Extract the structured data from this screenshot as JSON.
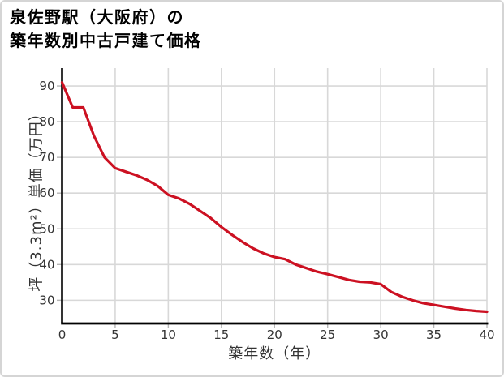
{
  "chart": {
    "title_line1": "泉佐野駅（大阪府）の",
    "title_line2": "築年数別中古戸建て価格"
  },
  "chart_data": {
    "type": "line",
    "title": "泉佐野駅（大阪府）の築年数別中古戸建て価格",
    "xlabel": "築年数（年）",
    "ylabel": "坪（3.3m²）単価（万円）",
    "x": [
      0,
      1,
      2,
      3,
      4,
      5,
      6,
      7,
      8,
      9,
      10,
      11,
      12,
      13,
      14,
      15,
      16,
      17,
      18,
      19,
      20,
      21,
      22,
      23,
      24,
      25,
      26,
      27,
      28,
      29,
      30,
      31,
      32,
      33,
      34,
      35,
      36,
      37,
      38,
      39,
      40
    ],
    "values": [
      91,
      84,
      84,
      76,
      70,
      67,
      66,
      65,
      63.7,
      62,
      59.5,
      58.5,
      57,
      55,
      53,
      50.5,
      48.3,
      46.3,
      44.5,
      43.1,
      42.1,
      41.5,
      40,
      39,
      38,
      37.3,
      36.5,
      35.7,
      35.2,
      35,
      34.5,
      32.3,
      31,
      30,
      29.2,
      28.7,
      28.2,
      27.7,
      27.3,
      27,
      26.8
    ],
    "xlim": [
      0,
      40
    ],
    "ylim": [
      23.5,
      95
    ],
    "xticks": [
      0,
      5,
      10,
      15,
      20,
      25,
      30,
      35,
      40
    ],
    "yticks": [
      30,
      40,
      50,
      60,
      70,
      80,
      90
    ],
    "grid": true,
    "legend": false,
    "line_color": "#cc1122",
    "grid_color": "#d8d8d8",
    "tick_mark_color": "#b5b5b5",
    "axis_color": "#000000",
    "tick_label_color": "#333333"
  }
}
